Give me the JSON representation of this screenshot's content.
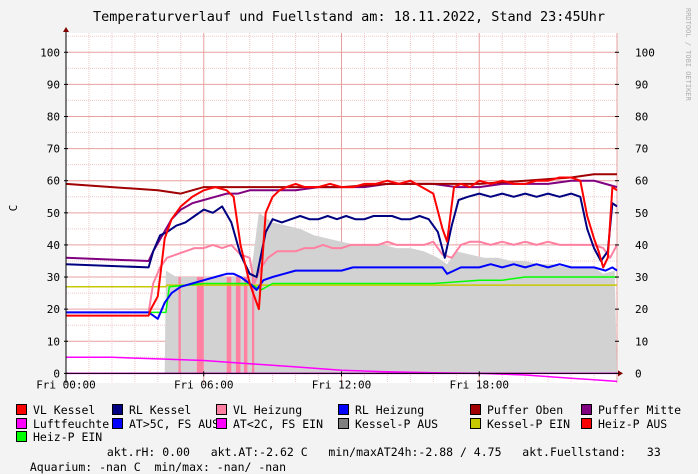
{
  "title": "Temperaturverlauf und Fuellstand am: 18.11.2022, Stand 23:45Uhr",
  "watermark": "RRDTOOL / TOBI OETIKER",
  "colors": {
    "background": "#f3f3f3",
    "plot_bg": "#ffffff",
    "grid_minor": "#f0c8c8",
    "grid_major": "#e8a0a0",
    "axis": "#000000",
    "area_fill": "#d2d2d2",
    "vl_kessel": "#ff0000",
    "rl_kessel": "#000080",
    "vl_heizung": "#ff80a0",
    "rl_heizung": "#0000ff",
    "puffer_oben": "#a00000",
    "puffer_mitte": "#800080",
    "luftfeuchte": "#ff00ff",
    "at_gt5": "#0000ff",
    "at_lt2": "#ff00ff",
    "kessel_p_aus": "#808080",
    "kessel_p_ein": "#c8c800",
    "heiz_p_aus": "#ff0000",
    "heiz_p_ein": "#00ff00"
  },
  "chart_data": {
    "type": "line",
    "title": "Temperaturverlauf und Fuellstand am: 18.11.2022, Stand 23:45Uhr",
    "ylabel": "C",
    "ylim": [
      -3,
      106
    ],
    "y_ticks": [
      0,
      10,
      20,
      30,
      40,
      50,
      60,
      70,
      80,
      90,
      100
    ],
    "x_range_hours": [
      0,
      24
    ],
    "x_ticks": [
      {
        "label": "Fri 00:00",
        "hour": 0
      },
      {
        "label": "Fri 06:00",
        "hour": 6
      },
      {
        "label": "Fri 12:00",
        "hour": 12
      },
      {
        "label": "Fri 18:00",
        "hour": 18
      }
    ],
    "grid": true,
    "legend_position": "bottom",
    "fuellstand_area": {
      "name": "Fuellstand",
      "x": [
        0,
        4.3,
        4.35,
        4.8,
        5.2,
        5.8,
        6.3,
        6.8,
        7.4,
        8.0,
        8.4,
        9.0,
        9.6,
        10.2,
        10.8,
        11.4,
        12.0,
        12.6,
        13.2,
        13.8,
        14.4,
        15.0,
        15.6,
        16.2,
        16.6,
        17.0,
        17.6,
        18.2,
        18.8,
        19.4,
        20.0,
        20.6,
        21.2,
        21.8,
        22.4,
        23.0,
        23.4,
        23.9,
        24.0
      ],
      "values": [
        0,
        0,
        32,
        30,
        30,
        30,
        30,
        30,
        30,
        28,
        50,
        47,
        46,
        45,
        43,
        42,
        41,
        40,
        40,
        40,
        39,
        39,
        38,
        36,
        34,
        38,
        37,
        36,
        36,
        35,
        35,
        34,
        34,
        33,
        33,
        33,
        31,
        32,
        0
      ]
    },
    "heiz_p_bars": {
      "name": "Heiz-P",
      "intervals": [
        [
          4.9,
          5.0
        ],
        [
          5.7,
          6.0
        ],
        [
          7.0,
          7.2
        ],
        [
          7.4,
          7.6
        ],
        [
          7.75,
          7.9
        ],
        [
          8.1,
          8.2
        ]
      ],
      "top": 30
    },
    "series": [
      {
        "name": "VL Kessel",
        "x": [
          0,
          3.6,
          3.7,
          4.0,
          4.3,
          4.6,
          5.0,
          5.5,
          6.0,
          6.5,
          7.0,
          7.3,
          7.6,
          8.0,
          8.4,
          8.7,
          9.0,
          9.3,
          9.6,
          10.0,
          10.4,
          11.0,
          11.5,
          12.0,
          12.5,
          13.0,
          13.5,
          14.0,
          14.5,
          15.0,
          15.5,
          16.0,
          16.4,
          16.6,
          16.9,
          17.2,
          17.6,
          18.0,
          18.5,
          19.0,
          19.5,
          20.0,
          20.5,
          21.0,
          21.5,
          22.0,
          22.4,
          22.7,
          23.0,
          23.2,
          23.4,
          23.6,
          23.8,
          24.0
        ],
        "values": [
          18,
          18,
          20,
          24,
          42,
          48,
          52,
          55,
          57,
          58,
          57,
          55,
          40,
          28,
          20,
          50,
          55,
          57,
          58,
          59,
          58,
          58,
          59,
          58,
          58,
          59,
          59,
          60,
          59,
          60,
          58,
          56,
          45,
          41,
          58,
          59,
          58,
          60,
          59,
          60,
          59,
          59,
          60,
          60,
          61,
          61,
          60,
          49,
          42,
          38,
          33,
          36,
          58,
          57
        ]
      },
      {
        "name": "RL Kessel",
        "x": [
          0,
          3.6,
          3.8,
          4.1,
          4.4,
          4.8,
          5.2,
          5.6,
          6.0,
          6.4,
          6.8,
          7.2,
          7.6,
          8.0,
          8.3,
          8.7,
          9.0,
          9.4,
          9.8,
          10.2,
          10.6,
          11.0,
          11.4,
          11.8,
          12.2,
          12.6,
          13.0,
          13.4,
          13.8,
          14.2,
          14.6,
          15.0,
          15.4,
          15.8,
          16.2,
          16.5,
          16.8,
          17.1,
          17.5,
          18.0,
          18.5,
          19.0,
          19.5,
          20.0,
          20.5,
          21.0,
          21.5,
          22.0,
          22.4,
          22.7,
          23.0,
          23.3,
          23.6,
          23.8,
          24.0
        ],
        "values": [
          34,
          33,
          38,
          43,
          44,
          46,
          47,
          49,
          51,
          50,
          52,
          47,
          37,
          31,
          30,
          44,
          48,
          47,
          48,
          49,
          48,
          48,
          49,
          48,
          49,
          48,
          48,
          49,
          49,
          49,
          48,
          48,
          49,
          48,
          44,
          36,
          46,
          54,
          55,
          56,
          55,
          56,
          55,
          56,
          55,
          56,
          55,
          56,
          55,
          45,
          39,
          35,
          38,
          53,
          52
        ]
      },
      {
        "name": "VL Heizung",
        "x": [
          0,
          3.6,
          3.8,
          4.1,
          4.4,
          4.8,
          5.2,
          5.6,
          6.0,
          6.4,
          6.8,
          7.2,
          7.6,
          8.0,
          8.2,
          8.5,
          8.8,
          9.2,
          9.6,
          10.0,
          10.4,
          10.8,
          11.2,
          11.6,
          12.0,
          12.4,
          12.8,
          13.2,
          13.6,
          14.0,
          14.4,
          14.8,
          15.2,
          15.6,
          16.0,
          16.4,
          16.8,
          17.2,
          17.6,
          18.0,
          18.5,
          19.0,
          19.5,
          20.0,
          20.5,
          21.0,
          21.5,
          22.0,
          22.5,
          23.0,
          23.4,
          23.7,
          24.0
        ],
        "values": [
          19,
          19,
          28,
          33,
          36,
          37,
          38,
          39,
          39,
          40,
          39,
          40,
          37,
          36,
          28,
          33,
          36,
          38,
          38,
          38,
          39,
          39,
          40,
          39,
          39,
          40,
          40,
          40,
          40,
          41,
          40,
          40,
          40,
          40,
          41,
          37,
          36,
          40,
          41,
          41,
          40,
          41,
          40,
          41,
          40,
          41,
          40,
          40,
          40,
          40,
          39,
          36,
          40
        ]
      },
      {
        "name": "RL Heizung",
        "x": [
          0,
          3.6,
          3.8,
          4.0,
          4.3,
          4.6,
          5.0,
          5.5,
          6.0,
          6.5,
          7.0,
          7.3,
          7.6,
          8.0,
          8.3,
          8.6,
          9.0,
          9.5,
          10.0,
          10.5,
          11.0,
          11.5,
          12.0,
          12.5,
          13.0,
          13.5,
          14.0,
          14.5,
          15.0,
          15.5,
          16.0,
          16.4,
          16.6,
          16.9,
          17.2,
          17.6,
          18.0,
          18.5,
          19.0,
          19.5,
          20.0,
          20.5,
          21.0,
          21.5,
          22.0,
          22.5,
          23.0,
          23.5,
          23.8,
          24.0
        ],
        "values": [
          19,
          19,
          18,
          17,
          22,
          25,
          27,
          28,
          29,
          30,
          31,
          31,
          30,
          28,
          26,
          29,
          30,
          31,
          32,
          32,
          32,
          32,
          32,
          33,
          33,
          33,
          33,
          33,
          33,
          33,
          33,
          33,
          31,
          32,
          33,
          33,
          33,
          34,
          33,
          34,
          33,
          34,
          33,
          34,
          33,
          33,
          33,
          32,
          33,
          32
        ]
      },
      {
        "name": "Puffer Oben",
        "x": [
          0,
          2,
          4,
          5,
          6,
          8,
          10,
          12,
          14,
          16,
          18,
          20,
          22,
          23,
          24
        ],
        "values": [
          59,
          58,
          57,
          56,
          58,
          58,
          58,
          58,
          59,
          59,
          59,
          60,
          61,
          62,
          62
        ]
      },
      {
        "name": "Puffer Mitte",
        "x": [
          0,
          3.6,
          3.8,
          4.2,
          4.6,
          5.0,
          5.5,
          6.0,
          6.5,
          7.0,
          7.5,
          8.0,
          9.0,
          10.0,
          11.0,
          12.0,
          13.0,
          14.0,
          15.0,
          16.0,
          17.0,
          18.0,
          19.0,
          20.0,
          21.0,
          22.0,
          22.5,
          23.0,
          23.5,
          24.0
        ],
        "values": [
          36,
          35,
          38,
          43,
          48,
          51,
          53,
          54,
          55,
          56,
          56,
          57,
          57,
          57,
          58,
          58,
          58,
          59,
          59,
          59,
          58,
          58,
          59,
          59,
          59,
          60,
          60,
          60,
          59,
          58
        ]
      },
      {
        "name": "Luftfeuchte",
        "x": [
          0,
          2,
          4,
          6,
          8,
          10,
          12,
          14,
          16,
          18,
          20,
          21,
          22,
          23,
          24
        ],
        "values": [
          5,
          5,
          4.5,
          4,
          3,
          2,
          1,
          0.5,
          0.2,
          0,
          -0.5,
          -1,
          -1.5,
          -2,
          -2.5
        ]
      },
      {
        "name": "Kessel-P EIN",
        "x": [
          0,
          4.35,
          4.4,
          24
        ],
        "values": [
          27,
          27,
          27.5,
          27.5
        ]
      },
      {
        "name": "Heiz-P EIN",
        "x": [
          0,
          4.35,
          4.5,
          6.0,
          7.0,
          8.0,
          8.5,
          9.0,
          10.0,
          12.0,
          14.0,
          16.0,
          18.0,
          19.0,
          20.0,
          22.0,
          24.0
        ],
        "values": [
          19,
          19,
          27,
          28,
          28,
          28,
          26,
          28,
          28,
          28,
          28,
          28,
          29,
          29,
          30,
          30,
          30
        ]
      },
      {
        "name": "Aquarium",
        "x": [
          0,
          24
        ],
        "values": [
          0,
          0
        ]
      }
    ]
  },
  "legend": [
    {
      "label": "VL Kessel",
      "color": "#ff0000"
    },
    {
      "label": "RL Kessel",
      "color": "#000080"
    },
    {
      "label": "VL Heizung",
      "color": "#ff80a0"
    },
    {
      "label": "RL Heizung",
      "color": "#0000ff"
    },
    {
      "label": "Puffer Oben",
      "color": "#a00000"
    },
    {
      "label": "Puffer Mitte",
      "color": "#800080"
    },
    {
      "label": "Luftfeuchte",
      "color": "#ff00ff"
    },
    {
      "label": "AT>5C, FS AUS",
      "color": "#0000ff"
    },
    {
      "label": "AT<2C, FS EIN",
      "color": "#ff00ff"
    },
    {
      "label": "Kessel-P AUS",
      "color": "#808080"
    },
    {
      "label": "Kessel-P EIN",
      "color": "#c8c800"
    },
    {
      "label": "Heiz-P AUS",
      "color": "#ff0000"
    },
    {
      "label": "Heiz-P EIN",
      "color": "#00ff00"
    }
  ],
  "info": {
    "line3_rest": "akt.rH: 0.00   akt.AT:-2.62 C   min/maxAT24h:-2.88 / 4.75   akt.Fuellstand:   33",
    "line4": "Aquarium: -nan C  min/max: -nan/ -nan"
  }
}
